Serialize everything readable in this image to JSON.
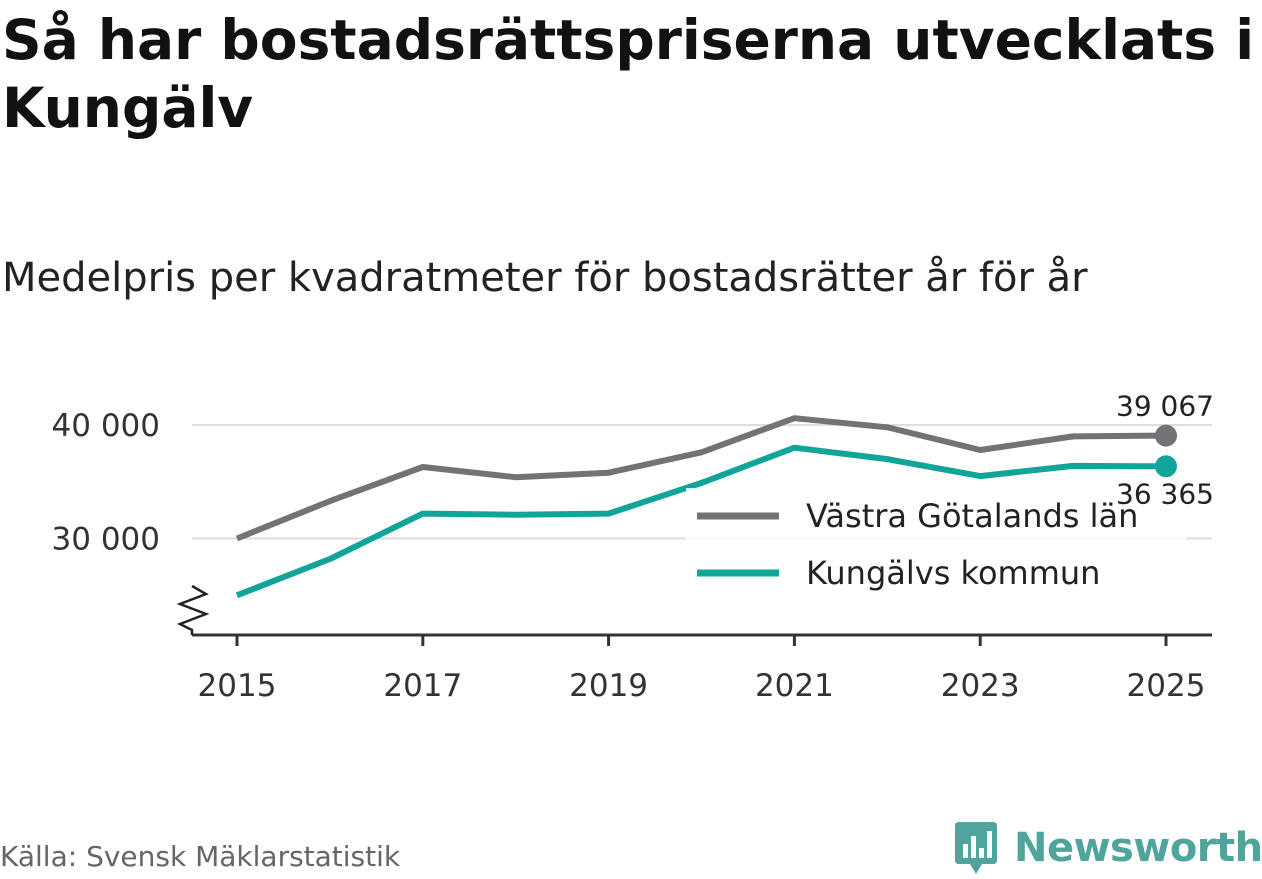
{
  "title": "Så har bostadsrättspriserna utvecklats i Kungälv",
  "subtitle": "Medelpris per kvadratmeter för bostadsrätter år för år",
  "source": "Källa: Svensk Mäklarstatistik",
  "brand": {
    "name": "Newsworthy",
    "icon": "newsworthy-logo-icon",
    "color": "#4fa59c"
  },
  "chart_data": {
    "type": "line",
    "x": [
      2015,
      2016,
      2017,
      2018,
      2019,
      2020,
      2021,
      2022,
      2023,
      2024,
      2025
    ],
    "series": [
      {
        "name": "Västra Götalands län",
        "color": "#737277",
        "values": [
          30000,
          33300,
          36300,
          35400,
          35800,
          37600,
          40600,
          39800,
          37800,
          39000,
          39067
        ],
        "end_label": "39 067"
      },
      {
        "name": "Kungälvs kommun",
        "color": "#11a59a",
        "values": [
          25000,
          28200,
          32200,
          32100,
          32200,
          34900,
          38000,
          37000,
          35500,
          36400,
          36365
        ],
        "end_label": "36 365"
      }
    ],
    "x_ticks": [
      "2015",
      "2017",
      "2019",
      "2021",
      "2023",
      "2025"
    ],
    "y_ticks": [
      "30 000",
      "40 000"
    ],
    "y_tick_values": [
      30000,
      40000
    ],
    "ylim": [
      21500,
      41500
    ],
    "y_axis_break": true,
    "legend_position": "center-right",
    "grid": true
  }
}
